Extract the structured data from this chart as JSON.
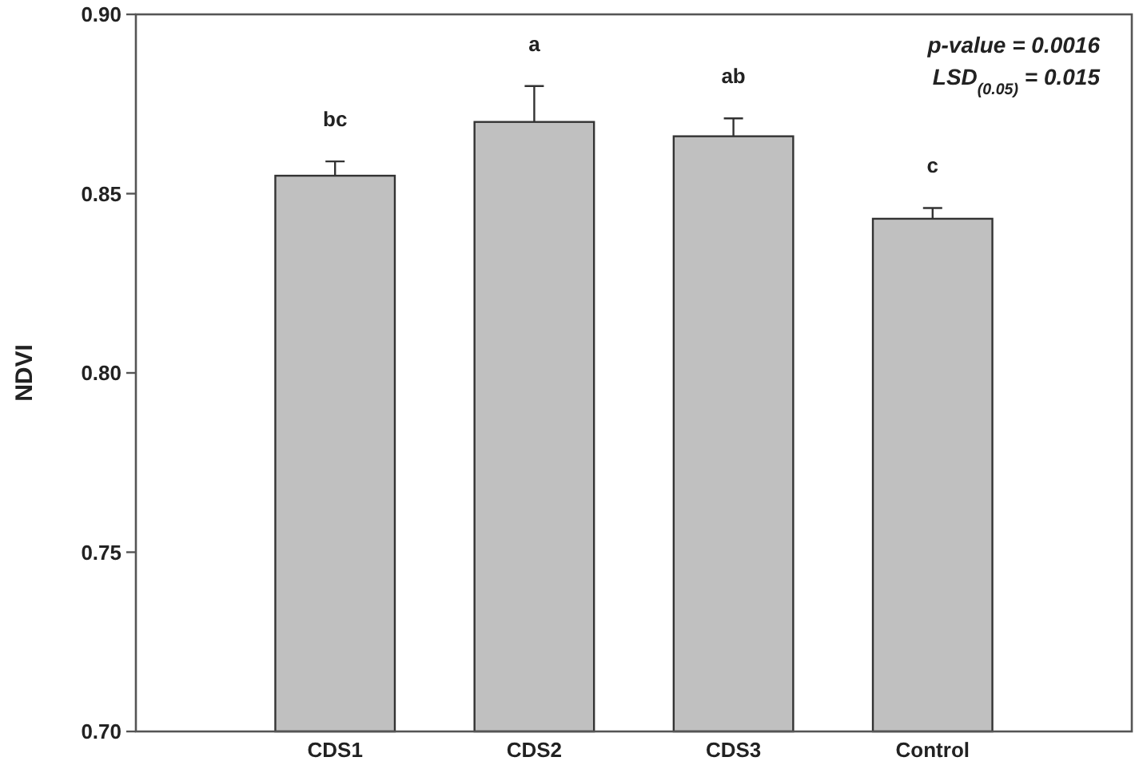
{
  "chart_data": {
    "type": "bar",
    "ylabel": "NDVI",
    "categories": [
      "CDS1",
      "CDS2",
      "CDS3",
      "Control"
    ],
    "values": [
      0.855,
      0.87,
      0.866,
      0.843
    ],
    "errors": [
      [
        0.855,
        0.859
      ],
      [
        0.87,
        0.88
      ],
      [
        0.866,
        0.871
      ],
      [
        0.843,
        0.846
      ]
    ],
    "color": "#c0c0c0",
    "ylim": [
      0.7,
      0.9
    ],
    "yticks": [
      {
        "value": 0.7,
        "label": "0.70"
      },
      {
        "value": 0.75,
        "label": "0.75"
      },
      {
        "value": 0.8,
        "label": "0.80"
      },
      {
        "value": 0.85,
        "label": "0.85"
      },
      {
        "value": 0.9,
        "label": "0.90"
      }
    ],
    "grid": false,
    "annotations": [
      "bc",
      "a",
      "ab",
      "c",
      "p-value = 0.0016",
      "LSD$_{(0.05)}$ = 0.015"
    ]
  }
}
